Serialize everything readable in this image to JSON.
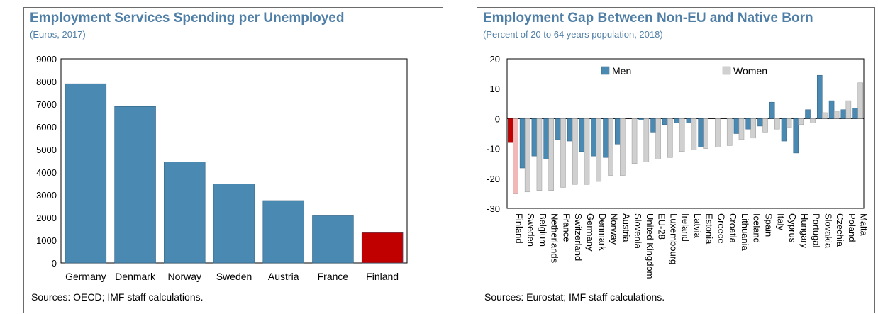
{
  "charts": [
    {
      "title": "Employment Services Spending per Unemployed",
      "subtitle": "(Euros, 2017)",
      "source": "Sources: OECD; IMF staff calculations.",
      "colors": {
        "bar": "#4a89b1",
        "highlight": "#c00000"
      },
      "chart_data": {
        "type": "bar",
        "title": "Employment Services Spending per Unemployed",
        "subtitle": "(Euros, 2017)",
        "categories": [
          "Germany",
          "Denmark",
          "Norway",
          "Sweden",
          "Austria",
          "France",
          "Finland"
        ],
        "values": [
          7900,
          6900,
          4450,
          3480,
          2750,
          2080,
          1340
        ],
        "highlight": "Finland",
        "ylim": [
          0,
          9000
        ],
        "yticks": [
          0,
          1000,
          2000,
          3000,
          4000,
          5000,
          6000,
          7000,
          8000,
          9000
        ],
        "xlabel": "",
        "ylabel": "",
        "grid": false
      }
    },
    {
      "title": "Employment Gap Between Non-EU and Native Born",
      "subtitle": "(Percent of 20 to 64 years population, 2018)",
      "source": "Sources: Eurostat; IMF staff calculations.",
      "colors": {
        "men": "#4a89b1",
        "women": "#d0d0d0",
        "highlight_men": "#c00000",
        "highlight_women": "#f2b8b8"
      },
      "chart_data": {
        "type": "bar",
        "title": "Employment Gap Between Non-EU and Native Born",
        "subtitle": "(Percent of 20 to 64 years population, 2018)",
        "categories": [
          "Finland",
          "Sweden",
          "Belgium",
          "Netherlands",
          "France",
          "Switzerland",
          "Germany",
          "Denmark",
          "Norway",
          "Austria",
          "Slovenia",
          "United Kingdom",
          "EU-28",
          "Luxembourg",
          "Ireland",
          "Latvia",
          "Estonia",
          "Greece",
          "Croatia",
          "Lithuania",
          "Iceland",
          "Spain",
          "Italy",
          "Cyprus",
          "Hungary",
          "Portugal",
          "Slovakia",
          "Czechia",
          "Poland",
          "Malta"
        ],
        "series": [
          {
            "name": "Men",
            "values": [
              -8,
              -16.5,
              -12.5,
              -13.5,
              -7,
              -7.5,
              -11,
              -12.5,
              -13,
              -8.5,
              0,
              -0.5,
              -4.5,
              -2,
              -1.5,
              -1.5,
              -9.5,
              0,
              0,
              -5,
              -3.5,
              -2.5,
              5.5,
              -7.5,
              -11.5,
              3,
              14.5,
              6,
              3,
              3.5
            ]
          },
          {
            "name": "Women",
            "values": [
              -25,
              -24.5,
              -24,
              -24,
              -23,
              -22,
              -22,
              -21,
              -19,
              -19,
              -15,
              -14.5,
              -13.5,
              -13,
              -11,
              -10.5,
              -10,
              -9.5,
              -9,
              -7,
              -6.5,
              -4.5,
              -3.5,
              -3,
              -2,
              -1.5,
              2,
              2.5,
              6,
              12
            ]
          }
        ],
        "highlight": "Finland",
        "ylim": [
          -30,
          20
        ],
        "yticks": [
          -30,
          -20,
          -10,
          0,
          10,
          20
        ],
        "legend": "top",
        "xlabel": "",
        "ylabel": "",
        "grid": false
      }
    }
  ]
}
